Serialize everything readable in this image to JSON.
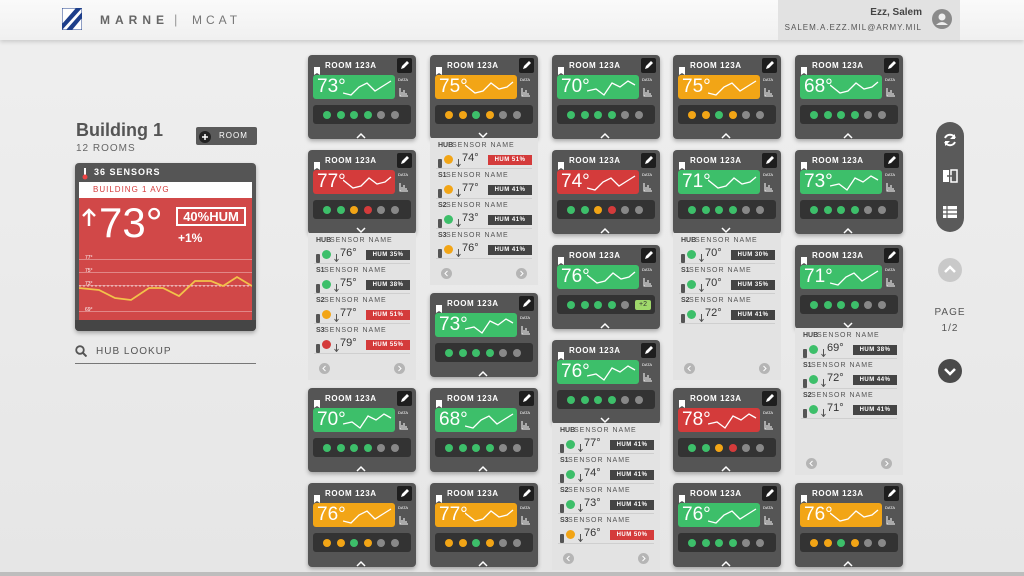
{
  "header": {
    "brand": "MARNE",
    "separator": "|",
    "app": "MCAT",
    "user_name": "Ezz, Salem",
    "user_email": "SALEM.A.EZZ.MIL@ARMY.MIL"
  },
  "building": {
    "title": "Building 1",
    "rooms_count": "12 ROOMS",
    "add_button": "ROOM",
    "sensors_count": "36 SENSORS",
    "avg_label": "BUILDING 1 AVG",
    "avg_temp": "73°",
    "humidity": "40%HUM",
    "humidity_change": "+1%",
    "chart_labels": [
      "77°",
      "75°",
      "73°",
      "69°"
    ]
  },
  "search": {
    "placeholder": "HUB LOOKUP"
  },
  "card_labels": {
    "data": "DATA"
  },
  "columns": [
    [
      {
        "name": "ROOM 123A",
        "temp": "73°",
        "color": "green"
      },
      {
        "name": "ROOM 123A",
        "temp": "77°",
        "color": "red",
        "sensors": [
          {
            "id": "HUB",
            "name": "SENSOR NAME",
            "temp": "76°",
            "humidity": "HUM 35%",
            "dot": "green",
            "alert": false
          },
          {
            "id": "S1",
            "name": "SENSOR NAME",
            "temp": "75°",
            "humidity": "HUM 38%",
            "dot": "green",
            "alert": false
          },
          {
            "id": "S2",
            "name": "SENSOR NAME",
            "temp": "77°",
            "humidity": "HUM 51%",
            "dot": "orange",
            "alert": true
          },
          {
            "id": "S3",
            "name": "SENSOR NAME",
            "temp": "79°",
            "humidity": "HUM 55%",
            "dot": "red",
            "alert": true
          }
        ]
      },
      {
        "name": "ROOM 123A",
        "temp": "70°",
        "color": "green"
      },
      {
        "name": "ROOM 123A",
        "temp": "76°",
        "color": "orange"
      }
    ],
    [
      {
        "name": "ROOM 123A",
        "temp": "75°",
        "color": "orange",
        "sensors": [
          {
            "id": "HUB",
            "name": "SENSOR NAME",
            "temp": "74°",
            "humidity": "HUM 51%",
            "dot": "orange",
            "alert": true
          },
          {
            "id": "S1",
            "name": "SENSOR NAME",
            "temp": "77°",
            "humidity": "HUM 41%",
            "dot": "orange",
            "alert": false
          },
          {
            "id": "S2",
            "name": "SENSOR NAME",
            "temp": "73°",
            "humidity": "HUM 41%",
            "dot": "green",
            "alert": false
          },
          {
            "id": "S3",
            "name": "SENSOR NAME",
            "temp": "76°",
            "humidity": "HUM 41%",
            "dot": "orange",
            "alert": false
          }
        ]
      },
      {
        "name": "ROOM 123A",
        "temp": "73°",
        "color": "green"
      },
      {
        "name": "ROOM 123A",
        "temp": "68°",
        "color": "green"
      },
      {
        "name": "ROOM 123A",
        "temp": "77°",
        "color": "orange"
      }
    ],
    [
      {
        "name": "ROOM 123A",
        "temp": "70°",
        "color": "green"
      },
      {
        "name": "ROOM 123A",
        "temp": "74°",
        "color": "red"
      },
      {
        "name": "ROOM 123A",
        "temp": "76°",
        "color": "green",
        "extra": "+2"
      },
      {
        "name": "ROOM 123A",
        "temp": "76°",
        "color": "green",
        "sensors": [
          {
            "id": "HUB",
            "name": "SENSOR NAME",
            "temp": "77°",
            "humidity": "HUM 41%",
            "dot": "green",
            "alert": false
          },
          {
            "id": "S1",
            "name": "SENSOR NAME",
            "temp": "74°",
            "humidity": "HUM 41%",
            "dot": "green",
            "alert": false
          },
          {
            "id": "S2",
            "name": "SENSOR NAME",
            "temp": "73°",
            "humidity": "HUM 41%",
            "dot": "green",
            "alert": false
          },
          {
            "id": "S3",
            "name": "SENSOR NAME",
            "temp": "76°",
            "humidity": "HUM 50%",
            "dot": "orange",
            "alert": true
          }
        ]
      }
    ],
    [
      {
        "name": "ROOM 123A",
        "temp": "75°",
        "color": "orange"
      },
      {
        "name": "ROOM 123A",
        "temp": "71°",
        "color": "green",
        "sensors": [
          {
            "id": "HUB",
            "name": "SENSOR NAME",
            "temp": "70°",
            "humidity": "HUM 30%",
            "dot": "green",
            "alert": false
          },
          {
            "id": "S1",
            "name": "SENSOR NAME",
            "temp": "70°",
            "humidity": "HUM 35%",
            "dot": "green",
            "alert": false
          },
          {
            "id": "S2",
            "name": "SENSOR NAME",
            "temp": "72°",
            "humidity": "HUM 41%",
            "dot": "green",
            "alert": false
          }
        ]
      },
      {
        "name": "ROOM 123A",
        "temp": "78°",
        "color": "red"
      },
      {
        "name": "ROOM 123A",
        "temp": "76°",
        "color": "green"
      }
    ],
    [
      {
        "name": "ROOM 123A",
        "temp": "68°",
        "color": "green"
      },
      {
        "name": "ROOM 123A",
        "temp": "73°",
        "color": "green"
      },
      {
        "name": "ROOM 123A",
        "temp": "71°",
        "color": "green",
        "sensors": [
          {
            "id": "HUB",
            "name": "SENSOR NAME",
            "temp": "69°",
            "humidity": "HUM 38%",
            "dot": "green",
            "alert": false
          },
          {
            "id": "S1",
            "name": "SENSOR NAME",
            "temp": "72°",
            "humidity": "HUM 44%",
            "dot": "green",
            "alert": false
          },
          {
            "id": "S2",
            "name": "SENSOR NAME",
            "temp": "71°",
            "humidity": "HUM 41%",
            "dot": "green",
            "alert": false
          }
        ]
      },
      {
        "name": "ROOM 123A",
        "temp": "76°",
        "color": "orange"
      }
    ]
  ],
  "pagination": {
    "label": "PAGE",
    "value": "1/2"
  }
}
